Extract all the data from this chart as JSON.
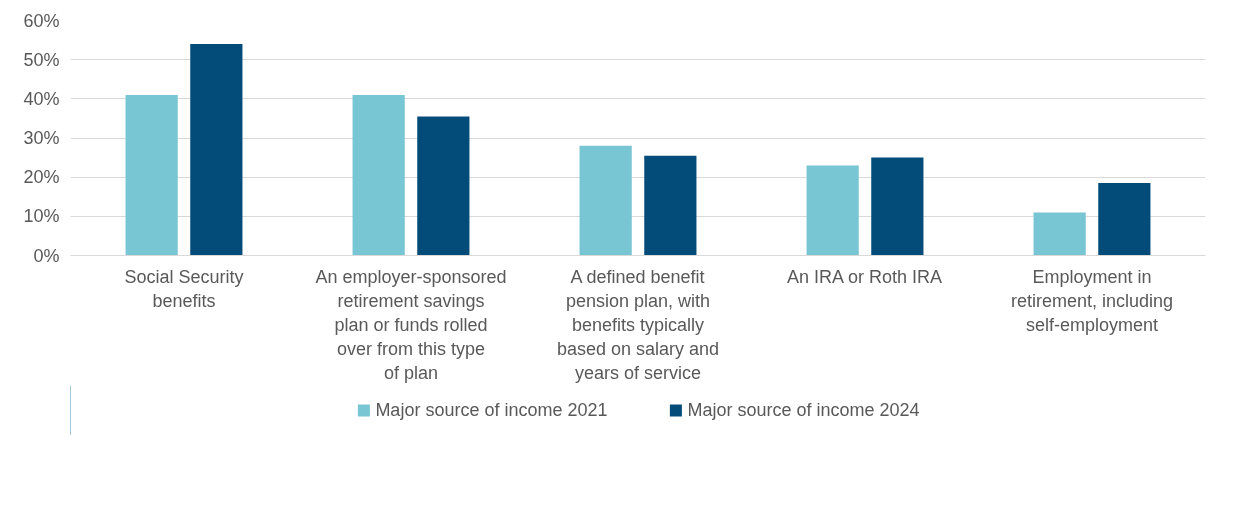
{
  "chart_data": {
    "type": "bar",
    "categories": [
      "Social Security benefits",
      "An employer-sponsored retirement savings plan or funds rolled over from this type of plan",
      "A defined benefit pension plan, with benefits typically based on salary and years of service",
      "An IRA or Roth IRA",
      "Employment in retirement, including self-employment"
    ],
    "series": [
      {
        "name": "Major source of income 2021",
        "color": "#78c5d4",
        "values": [
          41,
          41,
          28,
          23,
          11
        ]
      },
      {
        "name": "Major source of income 2024",
        "color": "#034c7a",
        "values": [
          54,
          35.5,
          25.5,
          25,
          18.5
        ]
      }
    ],
    "ylim": [
      0,
      60
    ],
    "yticks": [
      {
        "value": 0,
        "label": "0%"
      },
      {
        "value": 10,
        "label": "10%"
      },
      {
        "value": 20,
        "label": "20%"
      },
      {
        "value": 30,
        "label": "30%"
      },
      {
        "value": 40,
        "label": "40%"
      },
      {
        "value": 50,
        "label": "50%"
      },
      {
        "value": 60,
        "label": "60%"
      }
    ],
    "grid": "y",
    "legend": "bottom"
  }
}
